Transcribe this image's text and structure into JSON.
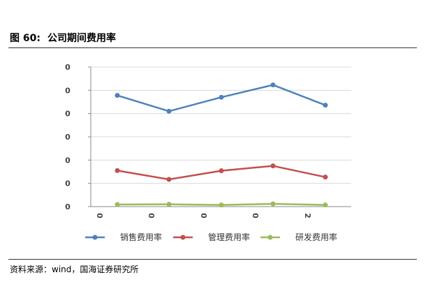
{
  "figure": {
    "number": "图 60:",
    "title": "公司期间费用率"
  },
  "source": "资料来源：wind，国海证券研究所",
  "chart_data": {
    "type": "line",
    "title": "",
    "xlabel": "",
    "ylabel": "",
    "categories": [
      "0",
      "0",
      "0",
      "0",
      "2"
    ],
    "y_tick_labels": [
      "0",
      "0",
      "0",
      "0",
      "0",
      "0",
      "0"
    ],
    "ylim": [
      0,
      6
    ],
    "grid": true,
    "legend_position": "bottom",
    "series": [
      {
        "name": "销售费用率",
        "color": "#4F81BD",
        "values": [
          4.78,
          4.1,
          4.7,
          5.23,
          4.36
        ]
      },
      {
        "name": "管理费用率",
        "color": "#C0504D",
        "values": [
          1.55,
          1.17,
          1.54,
          1.75,
          1.27
        ]
      },
      {
        "name": "研发费用率",
        "color": "#9BBB59",
        "values": [
          0.09,
          0.1,
          0.07,
          0.12,
          0.07
        ]
      }
    ]
  }
}
